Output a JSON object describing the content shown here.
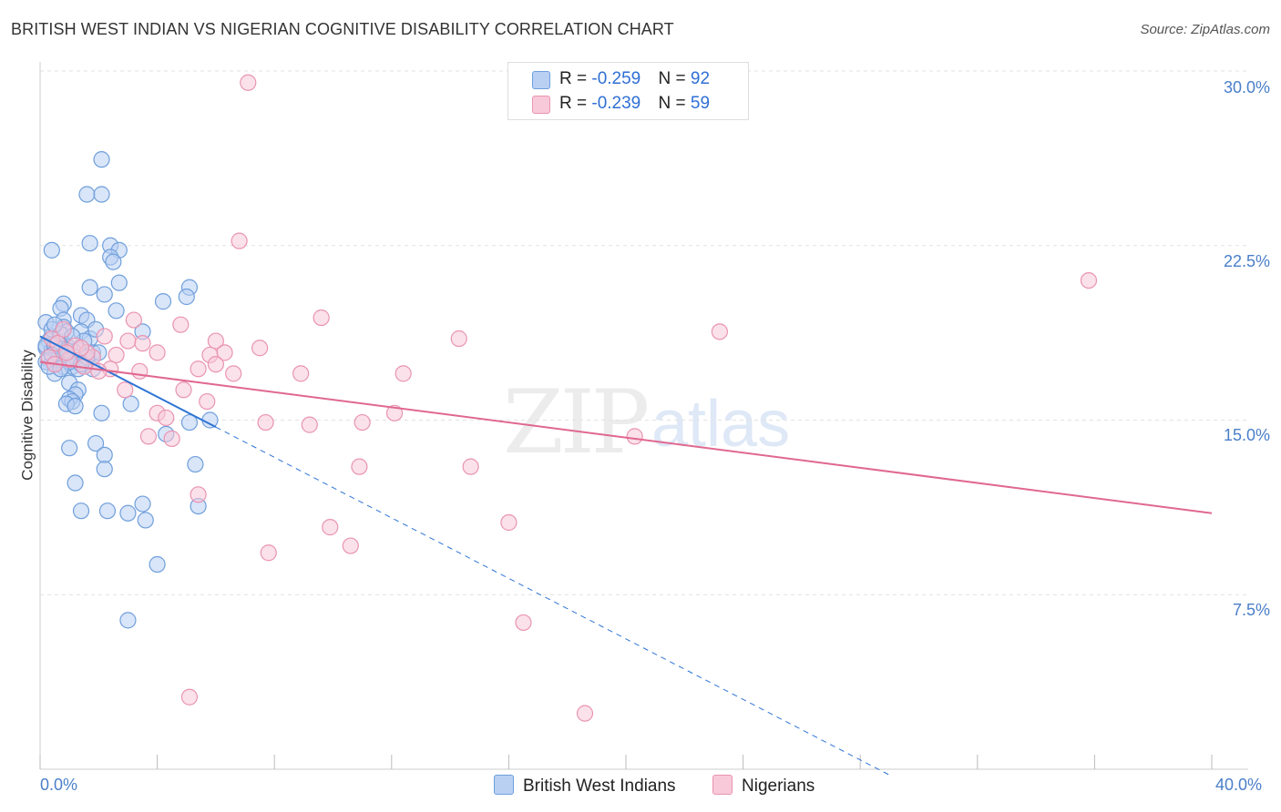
{
  "header": {
    "title": "BRITISH WEST INDIAN VS NIGERIAN COGNITIVE DISABILITY CORRELATION CHART",
    "source": "Source: ZipAtlas.com"
  },
  "watermark": {
    "zip": "ZIP",
    "atlas": "atlas"
  },
  "legend": {
    "row1": {
      "r_label": "R = ",
      "r_value": "-0.259",
      "n_label": "N = ",
      "n_value": "92"
    },
    "row2": {
      "r_label": "R = ",
      "r_value": "-0.239",
      "n_label": "N = ",
      "n_value": "59"
    }
  },
  "colors": {
    "blue": "#6f9fdc",
    "blue_fill": "#b9d0f3",
    "blue_line": "#2e74d4",
    "pink": "#e994b2",
    "pink_fill": "#f8c9d8",
    "pink_line": "#e0688f"
  },
  "chart_data": {
    "type": "scatter",
    "ylabel": "Cognitive Disability",
    "xlim": [
      0,
      40
    ],
    "ylim": [
      0,
      30
    ],
    "y_ticks": [
      7.5,
      15.0,
      22.5,
      30.0
    ],
    "y_tick_labels": [
      "7.5%",
      "15.0%",
      "22.5%",
      "30.0%"
    ],
    "x_tick_labels": [
      "0.0%",
      "40.0%"
    ],
    "x_minor_ticks": [
      0,
      4,
      8,
      12,
      16,
      20,
      24,
      28,
      32,
      36,
      40
    ],
    "grid": true,
    "series": [
      {
        "name": "British West Indians",
        "color": "#6f9fdc",
        "trend": {
          "x0": 0,
          "y0": 18.6,
          "x1": 6.0,
          "y1": 14.7,
          "dashed_to_x": 29.0
        },
        "points": [
          [
            2.1,
            26.2
          ],
          [
            1.6,
            24.7
          ],
          [
            2.1,
            24.7
          ],
          [
            2.4,
            22.5
          ],
          [
            1.7,
            22.6
          ],
          [
            2.7,
            22.3
          ],
          [
            2.4,
            22.0
          ],
          [
            2.5,
            21.8
          ],
          [
            0.4,
            22.3
          ],
          [
            2.7,
            20.9
          ],
          [
            1.7,
            20.7
          ],
          [
            5.1,
            20.7
          ],
          [
            2.2,
            20.4
          ],
          [
            5.0,
            20.3
          ],
          [
            4.2,
            20.1
          ],
          [
            0.8,
            20.0
          ],
          [
            0.7,
            19.8
          ],
          [
            2.6,
            19.7
          ],
          [
            1.4,
            19.5
          ],
          [
            0.8,
            19.3
          ],
          [
            1.6,
            19.3
          ],
          [
            0.2,
            19.2
          ],
          [
            0.8,
            19.0
          ],
          [
            0.9,
            18.8
          ],
          [
            1.4,
            18.8
          ],
          [
            3.5,
            18.8
          ],
          [
            0.4,
            18.6
          ],
          [
            1.7,
            18.5
          ],
          [
            0.3,
            18.4
          ],
          [
            0.6,
            18.3
          ],
          [
            0.9,
            18.2
          ],
          [
            1.0,
            18.1
          ],
          [
            0.2,
            18.1
          ],
          [
            0.4,
            18.0
          ],
          [
            1.3,
            18.0
          ],
          [
            1.8,
            17.9
          ],
          [
            0.6,
            17.9
          ],
          [
            0.9,
            17.8
          ],
          [
            1.2,
            17.7
          ],
          [
            0.3,
            17.6
          ],
          [
            0.6,
            17.5
          ],
          [
            0.5,
            17.4
          ],
          [
            1.5,
            17.4
          ],
          [
            0.8,
            17.3
          ],
          [
            1.1,
            17.3
          ],
          [
            1.3,
            17.2
          ],
          [
            1.8,
            17.2
          ],
          [
            0.2,
            17.5
          ],
          [
            0.5,
            17.0
          ],
          [
            1.0,
            16.6
          ],
          [
            1.3,
            16.3
          ],
          [
            1.2,
            16.1
          ],
          [
            1.0,
            15.9
          ],
          [
            1.1,
            15.8
          ],
          [
            0.9,
            15.7
          ],
          [
            3.1,
            15.7
          ],
          [
            1.2,
            15.6
          ],
          [
            2.1,
            15.3
          ],
          [
            5.1,
            14.9
          ],
          [
            5.8,
            15.0
          ],
          [
            4.3,
            14.4
          ],
          [
            1.9,
            14.0
          ],
          [
            1.0,
            13.8
          ],
          [
            2.2,
            13.5
          ],
          [
            5.3,
            13.1
          ],
          [
            2.2,
            12.9
          ],
          [
            1.2,
            12.3
          ],
          [
            3.5,
            11.4
          ],
          [
            5.4,
            11.3
          ],
          [
            1.4,
            11.1
          ],
          [
            2.3,
            11.1
          ],
          [
            3.0,
            11.0
          ],
          [
            3.6,
            10.7
          ],
          [
            4.0,
            8.8
          ],
          [
            3.0,
            6.4
          ],
          [
            0.4,
            18.9
          ],
          [
            0.7,
            18.7
          ],
          [
            1.5,
            18.4
          ],
          [
            0.2,
            18.2
          ],
          [
            2.0,
            17.9
          ],
          [
            0.6,
            17.6
          ],
          [
            1.0,
            17.5
          ],
          [
            0.3,
            17.3
          ],
          [
            1.6,
            17.7
          ],
          [
            0.5,
            18.2
          ],
          [
            0.9,
            18.0
          ],
          [
            0.4,
            17.8
          ],
          [
            1.4,
            17.4
          ],
          [
            0.7,
            17.2
          ],
          [
            1.1,
            18.6
          ],
          [
            0.5,
            19.1
          ],
          [
            1.9,
            18.9
          ]
        ]
      },
      {
        "name": "Nigerians",
        "color": "#e994b2",
        "trend": {
          "x0": 0,
          "y0": 17.5,
          "x1": 40,
          "y1": 11.0
        },
        "points": [
          [
            7.1,
            29.5
          ],
          [
            6.8,
            22.7
          ],
          [
            35.8,
            21.0
          ],
          [
            3.2,
            19.3
          ],
          [
            9.6,
            19.4
          ],
          [
            4.8,
            19.1
          ],
          [
            23.2,
            18.8
          ],
          [
            14.3,
            18.5
          ],
          [
            6.0,
            18.4
          ],
          [
            3.0,
            18.4
          ],
          [
            3.5,
            18.3
          ],
          [
            7.5,
            18.1
          ],
          [
            4.0,
            17.9
          ],
          [
            6.3,
            17.9
          ],
          [
            5.8,
            17.8
          ],
          [
            2.6,
            17.8
          ],
          [
            1.8,
            17.7
          ],
          [
            1.0,
            17.6
          ],
          [
            6.0,
            17.4
          ],
          [
            2.4,
            17.2
          ],
          [
            5.4,
            17.2
          ],
          [
            3.4,
            17.1
          ],
          [
            8.9,
            17.0
          ],
          [
            12.4,
            17.0
          ],
          [
            6.6,
            17.0
          ],
          [
            2.0,
            17.1
          ],
          [
            1.5,
            17.3
          ],
          [
            4.9,
            16.3
          ],
          [
            2.9,
            16.3
          ],
          [
            5.7,
            15.8
          ],
          [
            4.0,
            15.3
          ],
          [
            12.1,
            15.3
          ],
          [
            4.3,
            15.1
          ],
          [
            7.7,
            14.9
          ],
          [
            11.0,
            14.9
          ],
          [
            9.2,
            14.8
          ],
          [
            3.7,
            14.3
          ],
          [
            20.3,
            14.3
          ],
          [
            4.5,
            14.2
          ],
          [
            10.9,
            13.0
          ],
          [
            14.7,
            13.0
          ],
          [
            5.4,
            11.8
          ],
          [
            16.0,
            10.6
          ],
          [
            9.9,
            10.4
          ],
          [
            10.6,
            9.6
          ],
          [
            7.8,
            9.3
          ],
          [
            16.5,
            6.3
          ],
          [
            5.1,
            3.1
          ],
          [
            18.6,
            2.4
          ],
          [
            0.4,
            18.5
          ],
          [
            1.2,
            18.2
          ],
          [
            0.8,
            18.9
          ],
          [
            1.6,
            17.9
          ],
          [
            0.3,
            17.7
          ],
          [
            0.6,
            18.3
          ],
          [
            2.2,
            18.6
          ],
          [
            0.9,
            17.9
          ],
          [
            1.4,
            18.1
          ],
          [
            0.5,
            17.4
          ]
        ]
      }
    ]
  },
  "bottom_legend": {
    "item1": "British West Indians",
    "item2": "Nigerians"
  }
}
